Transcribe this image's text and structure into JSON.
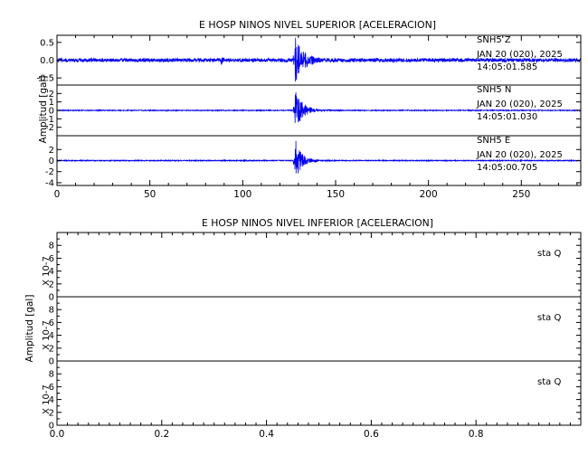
{
  "chart_data": [
    {
      "type": "line",
      "title": "E HOSP NINOS NIVEL SUPERIOR [ACELERACION]",
      "ylabel": "Amplitud  [gal]",
      "xlim": [
        0,
        282
      ],
      "x_ticks": [
        0,
        50,
        100,
        150,
        200,
        250
      ],
      "color": "#0000ee",
      "series": [
        {
          "station": "SNH5",
          "component": "Z",
          "date_line": "JAN 20 (020), 2025",
          "time_line": "14:05:01.585",
          "ylim": [
            -0.7,
            0.7
          ],
          "y_ticks": [
            "0.5",
            "0.0",
            "-0.5"
          ],
          "noise_amp": 0.05,
          "events": [
            {
              "t": 88.5,
              "amp": 0.18,
              "dur": 1.5
            },
            {
              "t": 128,
              "amp": 0.7,
              "dur": 12
            }
          ]
        },
        {
          "station": "SNH5",
          "component": "N",
          "date_line": "JAN 20 (020), 2025",
          "time_line": "14:05:01.030",
          "ylim": [
            -3,
            3
          ],
          "y_ticks": [
            "2",
            "1",
            "0",
            "-1",
            "-2"
          ],
          "noise_amp": 0.05,
          "events": [
            {
              "t": 128,
              "amp": 2.6,
              "dur": 12
            }
          ]
        },
        {
          "station": "SNH5",
          "component": "E",
          "date_line": "JAN 20 (020), 2025",
          "time_line": "14:05:00.705",
          "ylim": [
            -4.5,
            4.5
          ],
          "y_ticks": [
            "2",
            "0",
            "-2",
            "-4"
          ],
          "noise_amp": 0.08,
          "events": [
            {
              "t": 128,
              "amp": 4.2,
              "dur": 10
            }
          ]
        }
      ]
    },
    {
      "type": "line",
      "title": "E HOSP NINOS NIVEL INFERIOR [ACELERACION]",
      "ylabel": "Amplitud  [gal]",
      "scale_label": "X 10-7",
      "xlim": [
        0,
        1
      ],
      "x_ticks": [
        "0.0",
        "0.2",
        "0.4",
        "0.6",
        "0.8"
      ],
      "color": "#0000ee",
      "series": [
        {
          "station": "sta",
          "component": "Q",
          "ylim": [
            0,
            10
          ],
          "y_ticks": [
            "8",
            "6",
            "4",
            "2",
            "0"
          ],
          "value": 0
        },
        {
          "station": "sta",
          "component": "Q",
          "ylim": [
            0,
            10
          ],
          "y_ticks": [
            "8",
            "6",
            "4",
            "2",
            "0"
          ],
          "value": 0
        },
        {
          "station": "sta",
          "component": "Q",
          "ylim": [
            0,
            10
          ],
          "y_ticks": [
            "8",
            "6",
            "4",
            "2",
            "0"
          ],
          "value": 0
        }
      ]
    }
  ]
}
